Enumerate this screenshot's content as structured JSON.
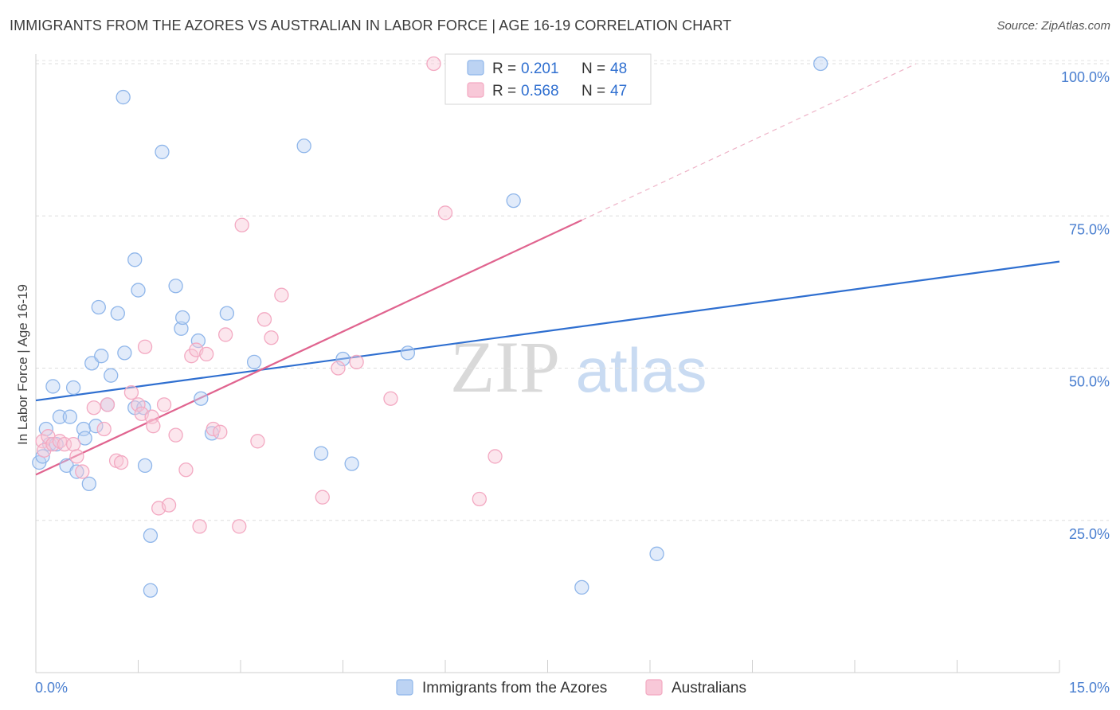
{
  "title": "IMMIGRANTS FROM THE AZORES VS AUSTRALIAN IN LABOR FORCE | AGE 16-19 CORRELATION CHART",
  "source": "Source: ZipAtlas.com",
  "watermark": {
    "part1": "ZIP",
    "part2": "atlas"
  },
  "chart_data": {
    "type": "scatter",
    "xlabel": "",
    "ylabel": "In Labor Force | Age 16-19",
    "xlim": [
      0,
      15
    ],
    "ylim": [
      0,
      102
    ],
    "x_tick_labels": [
      "0.0%",
      "15.0%"
    ],
    "y_ticks": [
      25,
      50,
      75,
      100
    ],
    "y_tick_labels": [
      "25.0%",
      "50.0%",
      "75.0%",
      "100.0%"
    ],
    "grid": "horizontal dashed",
    "legend_placement": "top-center",
    "stats_legend": [
      {
        "r_label": "R = ",
        "r_value": "0.201",
        "n_label": "N = ",
        "n_value": "48"
      },
      {
        "r_label": "R = ",
        "r_value": "0.568",
        "n_label": "N = ",
        "n_value": "47"
      }
    ],
    "series": [
      {
        "name": "Immigrants from the Azores",
        "color": "#8fb6ea",
        "line_color": "#2f6fd0",
        "trend": {
          "x": [
            0,
            15
          ],
          "y": [
            44.7,
            67.5
          ],
          "dashed_extension": false
        },
        "points": [
          [
            0.05,
            34.5
          ],
          [
            0.1,
            35.5
          ],
          [
            0.15,
            40.0
          ],
          [
            0.2,
            37.5
          ],
          [
            0.25,
            47.0
          ],
          [
            0.3,
            37.5
          ],
          [
            0.35,
            42.0
          ],
          [
            0.45,
            34.0
          ],
          [
            0.5,
            42.0
          ],
          [
            0.55,
            46.8
          ],
          [
            0.6,
            33.0
          ],
          [
            0.7,
            40.0
          ],
          [
            0.72,
            38.5
          ],
          [
            0.78,
            31.0
          ],
          [
            0.82,
            50.8
          ],
          [
            0.88,
            40.5
          ],
          [
            0.92,
            60.0
          ],
          [
            0.96,
            52.0
          ],
          [
            1.05,
            44.0
          ],
          [
            1.1,
            48.8
          ],
          [
            1.2,
            59.0
          ],
          [
            1.28,
            94.5
          ],
          [
            1.3,
            52.5
          ],
          [
            1.45,
            43.5
          ],
          [
            1.45,
            67.8
          ],
          [
            1.5,
            62.8
          ],
          [
            1.58,
            43.5
          ],
          [
            1.6,
            34.0
          ],
          [
            1.68,
            22.5
          ],
          [
            1.68,
            13.5
          ],
          [
            1.85,
            85.5
          ],
          [
            2.05,
            63.5
          ],
          [
            2.13,
            56.5
          ],
          [
            2.15,
            58.3
          ],
          [
            2.38,
            54.5
          ],
          [
            2.42,
            45.0
          ],
          [
            2.58,
            39.3
          ],
          [
            2.8,
            59.0
          ],
          [
            3.2,
            51.0
          ],
          [
            3.93,
            86.5
          ],
          [
            4.18,
            36.0
          ],
          [
            4.5,
            51.5
          ],
          [
            4.63,
            34.3
          ],
          [
            5.45,
            52.5
          ],
          [
            7.0,
            77.5
          ],
          [
            8.0,
            14.0
          ],
          [
            9.1,
            19.5
          ],
          [
            11.5,
            100.0
          ]
        ]
      },
      {
        "name": "Australians",
        "color": "#f3a9c2",
        "line_color": "#e0648f",
        "trend": {
          "x": [
            0,
            8.0
          ],
          "y": [
            32.5,
            74.3
          ],
          "dashed_to": [
            12.9,
            100.0
          ]
        },
        "points": [
          [
            0.1,
            38.0
          ],
          [
            0.12,
            36.5
          ],
          [
            0.18,
            38.8
          ],
          [
            0.25,
            37.5
          ],
          [
            0.35,
            38.0
          ],
          [
            0.42,
            37.5
          ],
          [
            0.55,
            37.5
          ],
          [
            0.6,
            35.5
          ],
          [
            0.68,
            33.0
          ],
          [
            0.85,
            43.5
          ],
          [
            1.0,
            40.0
          ],
          [
            1.05,
            44.0
          ],
          [
            1.18,
            34.8
          ],
          [
            1.25,
            34.5
          ],
          [
            1.4,
            46.0
          ],
          [
            1.5,
            44.0
          ],
          [
            1.55,
            42.5
          ],
          [
            1.6,
            53.5
          ],
          [
            1.7,
            42.0
          ],
          [
            1.72,
            40.5
          ],
          [
            1.8,
            27.0
          ],
          [
            1.88,
            44.0
          ],
          [
            1.95,
            27.5
          ],
          [
            2.05,
            39.0
          ],
          [
            2.2,
            33.3
          ],
          [
            2.28,
            52.0
          ],
          [
            2.35,
            53.0
          ],
          [
            2.4,
            24.0
          ],
          [
            2.5,
            52.3
          ],
          [
            2.6,
            40.0
          ],
          [
            2.7,
            39.5
          ],
          [
            2.78,
            55.5
          ],
          [
            2.98,
            24.0
          ],
          [
            3.02,
            73.5
          ],
          [
            3.25,
            38.0
          ],
          [
            3.35,
            58.0
          ],
          [
            3.45,
            55.0
          ],
          [
            3.6,
            62.0
          ],
          [
            4.2,
            28.8
          ],
          [
            4.43,
            50.0
          ],
          [
            4.7,
            51.0
          ],
          [
            5.2,
            45.0
          ],
          [
            5.83,
            100.0
          ],
          [
            6.0,
            75.5
          ],
          [
            6.15,
            100.0
          ],
          [
            6.5,
            28.5
          ],
          [
            6.73,
            35.5
          ]
        ]
      }
    ]
  }
}
